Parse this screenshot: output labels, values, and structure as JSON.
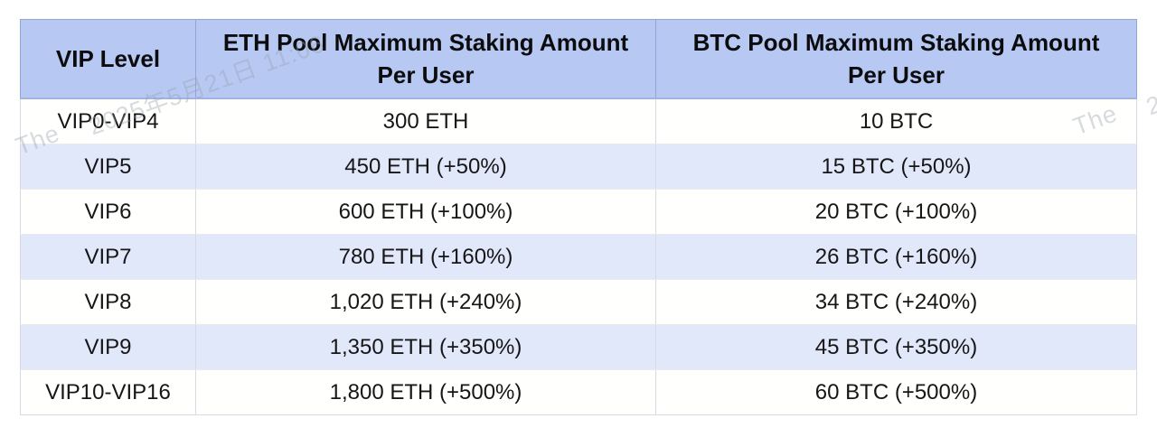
{
  "chart_data": {
    "type": "table",
    "columns": [
      {
        "label": "VIP Level"
      },
      {
        "line1": "ETH Pool Maximum Staking Amount",
        "line2": "Per User"
      },
      {
        "line1": "BTC Pool Maximum Staking Amount",
        "line2": "Per User"
      }
    ],
    "rows": [
      {
        "vip": "VIP0-VIP4",
        "eth": "300 ETH",
        "btc": "10 BTC"
      },
      {
        "vip": "VIP5",
        "eth": "450 ETH (+50%)",
        "btc": "15 BTC (+50%)"
      },
      {
        "vip": "VIP6",
        "eth": "600 ETH (+100%)",
        "btc": "20 BTC (+100%)"
      },
      {
        "vip": "VIP7",
        "eth": "780 ETH (+160%)",
        "btc": "26 BTC (+160%)"
      },
      {
        "vip": "VIP8",
        "eth": "1,020 ETH (+240%)",
        "btc": "34 BTC (+240%)"
      },
      {
        "vip": "VIP9",
        "eth": "1,350 ETH (+350%)",
        "btc": "45 BTC (+350%)"
      },
      {
        "vip": "VIP10-VIP16",
        "eth": "1,800 ETH (+500%)",
        "btc": "60 BTC (+500%)"
      }
    ]
  },
  "watermark": {
    "prefix": "The",
    "datetime": "2025年5月21日 11:06"
  },
  "colors": {
    "header_bg": "#b7c9f3",
    "row_bg": "#fffffd",
    "row_alt_bg": "#e1e8f9",
    "header_border": "#a2b3e2",
    "body_border": "#d6d9e1",
    "text": "#161618"
  }
}
